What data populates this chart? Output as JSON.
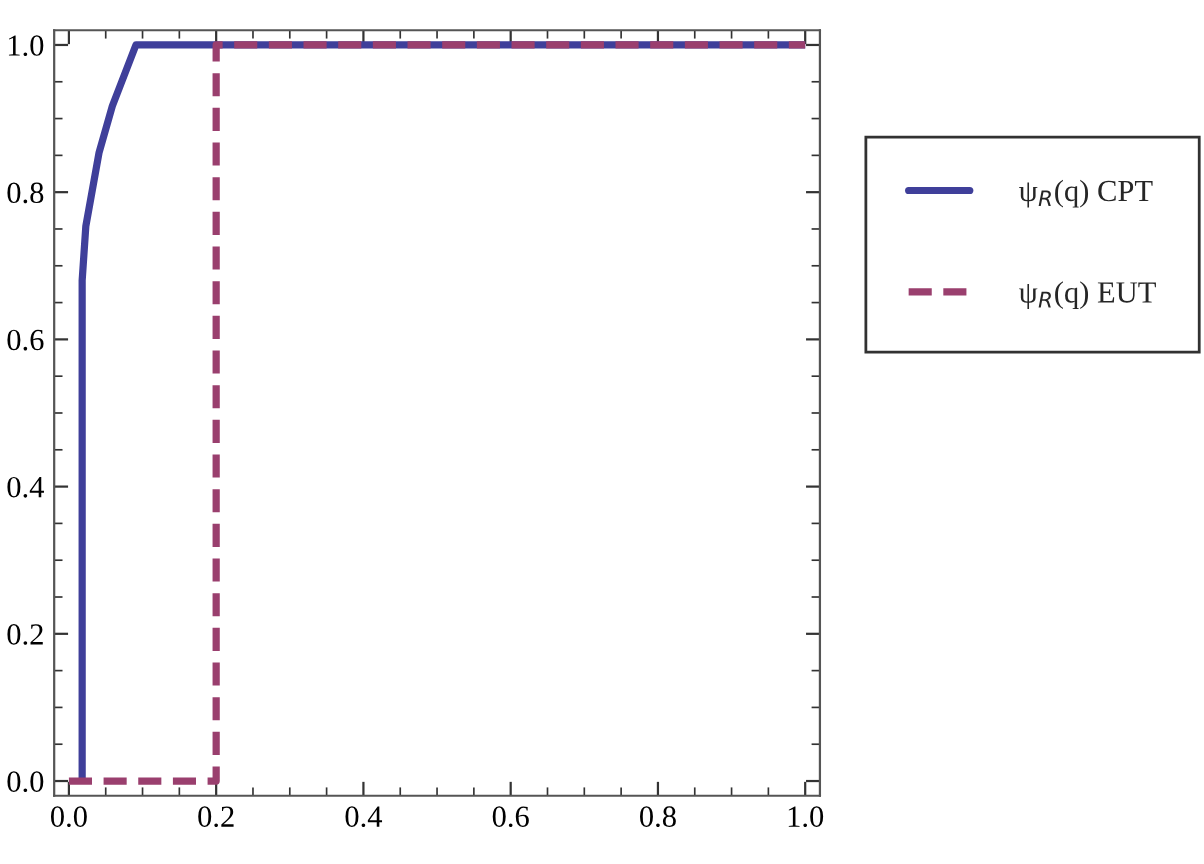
{
  "chart_data": {
    "type": "line",
    "xlim": [
      -0.02,
      1.02
    ],
    "ylim": [
      -0.02,
      1.02
    ],
    "xticks": [
      {
        "value": 0,
        "label": "0.0"
      },
      0.2,
      0.4,
      0.6,
      0.8,
      {
        "value": 1,
        "label": "1.0"
      }
    ],
    "yticks": [
      {
        "value": 0,
        "label": "0.0"
      },
      0.2,
      0.4,
      0.6,
      0.8,
      {
        "value": 1,
        "label": "1.0"
      }
    ],
    "grid": false,
    "legend": "right",
    "series": [
      {
        "name": "ψ$_{R}$(q) CPT",
        "color": "#3f3f9a",
        "line_style": "solid",
        "x": [
          0.018,
          0.018,
          0.023,
          0.041,
          0.059,
          0.091,
          1.0
        ],
        "values": [
          0.0,
          0.68,
          0.754,
          0.854,
          0.917,
          1.0,
          1.0
        ]
      },
      {
        "name": "ψ$_{R}$(q) EUT",
        "color": "#9a3f6e",
        "line_style": "dashed",
        "x": [
          0.0,
          0.2,
          0.2,
          1.0
        ],
        "values": [
          0.0,
          0.0,
          1.0,
          1.0
        ]
      }
    ]
  }
}
